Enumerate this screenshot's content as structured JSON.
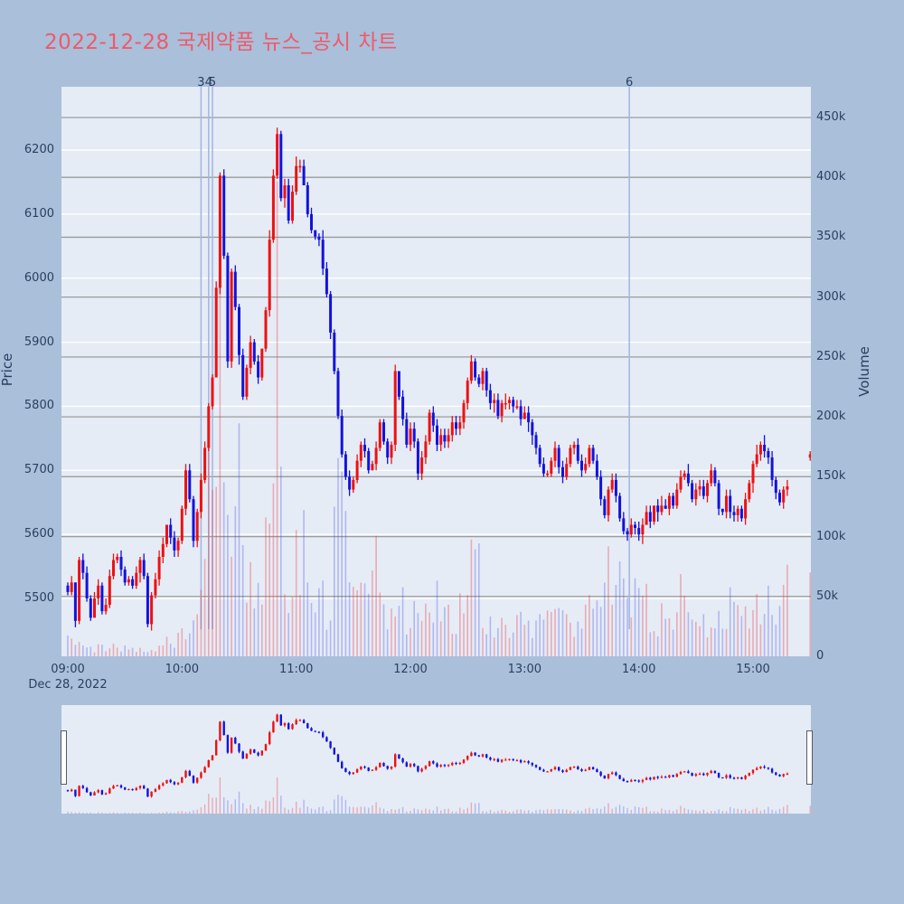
{
  "title": {
    "text": "2022-12-28 국제약품 뉴스_공시 차트",
    "color": "#ee5a6a"
  },
  "chart_data": {
    "type": "candlestick+volume",
    "symbol": "국제약품",
    "session_date": "2022-12-28",
    "x_axis": {
      "tick_labels": [
        {
          "label": "09:00",
          "minute": 0
        },
        {
          "label": "10:00",
          "minute": 60
        },
        {
          "label": "11:00",
          "minute": 120
        },
        {
          "label": "12:00",
          "minute": 180
        },
        {
          "label": "13:00",
          "minute": 240
        },
        {
          "label": "14:00",
          "minute": 300
        },
        {
          "label": "15:00",
          "minute": 360
        }
      ],
      "date_label": "Dec 28, 2022",
      "start_minute": 0,
      "end_minute": 390
    },
    "price_axis": {
      "title": "Price",
      "ticks": [
        {
          "label": "6200",
          "value": 6200
        },
        {
          "label": "6100",
          "value": 6100
        },
        {
          "label": "6000",
          "value": 6000
        },
        {
          "label": "5900",
          "value": 5900
        },
        {
          "label": "5800",
          "value": 5800
        },
        {
          "label": "5700",
          "value": 5700
        },
        {
          "label": "5600",
          "value": 5600
        },
        {
          "label": "5500",
          "value": 5500
        }
      ],
      "range": [
        5411,
        6299
      ],
      "gridline_color": "#ffffff"
    },
    "volume_axis": {
      "title": "Volume",
      "ticks": [
        {
          "label": "450k",
          "value": 450000
        },
        {
          "label": "400k",
          "value": 400000
        },
        {
          "label": "350k",
          "value": 350000
        },
        {
          "label": "300k",
          "value": 300000
        },
        {
          "label": "250k",
          "value": 250000
        },
        {
          "label": "200k",
          "value": 200000
        },
        {
          "label": "150k",
          "value": 150000
        },
        {
          "label": "100k",
          "value": 100000
        },
        {
          "label": "50k",
          "value": 50000
        },
        {
          "label": "0",
          "value": 0
        }
      ],
      "range": [
        0,
        476000
      ],
      "gridline_color": "#9b9b9b"
    },
    "annotations": [
      {
        "label": "3",
        "minute": 70
      },
      {
        "label": "4",
        "minute": 74
      },
      {
        "label": "5",
        "minute": 76
      },
      {
        "label": "6",
        "minute": 295
      }
    ],
    "candle_interval_minutes": 2,
    "price_waypoints": [
      [
        0,
        5515
      ],
      [
        2,
        5525
      ],
      [
        4,
        5465
      ],
      [
        6,
        5555
      ],
      [
        8,
        5545
      ],
      [
        10,
        5500
      ],
      [
        12,
        5475
      ],
      [
        14,
        5495
      ],
      [
        16,
        5525
      ],
      [
        18,
        5480
      ],
      [
        20,
        5495
      ],
      [
        22,
        5530
      ],
      [
        24,
        5555
      ],
      [
        26,
        5565
      ],
      [
        28,
        5545
      ],
      [
        30,
        5520
      ],
      [
        32,
        5535
      ],
      [
        34,
        5515
      ],
      [
        36,
        5545
      ],
      [
        38,
        5560
      ],
      [
        40,
        5530
      ],
      [
        42,
        5465
      ],
      [
        44,
        5500
      ],
      [
        46,
        5530
      ],
      [
        48,
        5560
      ],
      [
        50,
        5590
      ],
      [
        52,
        5620
      ],
      [
        54,
        5600
      ],
      [
        56,
        5575
      ],
      [
        58,
        5590
      ],
      [
        60,
        5640
      ],
      [
        62,
        5700
      ],
      [
        64,
        5655
      ],
      [
        66,
        5590
      ],
      [
        68,
        5640
      ],
      [
        70,
        5690
      ],
      [
        72,
        5740
      ],
      [
        74,
        5800
      ],
      [
        76,
        5845
      ],
      [
        78,
        5990
      ],
      [
        80,
        6160
      ],
      [
        82,
        6040
      ],
      [
        84,
        5870
      ],
      [
        86,
        6010
      ],
      [
        88,
        5950
      ],
      [
        90,
        5880
      ],
      [
        92,
        5810
      ],
      [
        94,
        5860
      ],
      [
        96,
        5905
      ],
      [
        98,
        5870
      ],
      [
        100,
        5840
      ],
      [
        102,
        5885
      ],
      [
        104,
        5950
      ],
      [
        106,
        6060
      ],
      [
        108,
        6160
      ],
      [
        110,
        6230
      ],
      [
        112,
        6130
      ],
      [
        114,
        6150
      ],
      [
        116,
        6090
      ],
      [
        118,
        6130
      ],
      [
        121,
        6200
      ],
      [
        124,
        6150
      ],
      [
        126,
        6100
      ],
      [
        128,
        6080
      ],
      [
        132,
        6060
      ],
      [
        134,
        6020
      ],
      [
        136,
        5980
      ],
      [
        138,
        5920
      ],
      [
        140,
        5860
      ],
      [
        142,
        5790
      ],
      [
        144,
        5730
      ],
      [
        146,
        5690
      ],
      [
        148,
        5665
      ],
      [
        150,
        5685
      ],
      [
        152,
        5720
      ],
      [
        154,
        5745
      ],
      [
        156,
        5730
      ],
      [
        158,
        5705
      ],
      [
        160,
        5715
      ],
      [
        162,
        5740
      ],
      [
        164,
        5770
      ],
      [
        166,
        5745
      ],
      [
        168,
        5720
      ],
      [
        170,
        5740
      ],
      [
        172,
        5855
      ],
      [
        174,
        5820
      ],
      [
        176,
        5780
      ],
      [
        178,
        5745
      ],
      [
        180,
        5770
      ],
      [
        182,
        5745
      ],
      [
        184,
        5700
      ],
      [
        186,
        5720
      ],
      [
        188,
        5750
      ],
      [
        190,
        5790
      ],
      [
        192,
        5770
      ],
      [
        194,
        5745
      ],
      [
        196,
        5760
      ],
      [
        198,
        5740
      ],
      [
        200,
        5755
      ],
      [
        202,
        5775
      ],
      [
        204,
        5760
      ],
      [
        206,
        5780
      ],
      [
        208,
        5810
      ],
      [
        210,
        5835
      ],
      [
        212,
        5870
      ],
      [
        214,
        5850
      ],
      [
        216,
        5835
      ],
      [
        218,
        5850
      ],
      [
        220,
        5820
      ],
      [
        222,
        5800
      ],
      [
        224,
        5815
      ],
      [
        226,
        5790
      ],
      [
        228,
        5805
      ],
      [
        230,
        5805
      ],
      [
        232,
        5810
      ],
      [
        234,
        5795
      ],
      [
        236,
        5800
      ],
      [
        238,
        5785
      ],
      [
        240,
        5790
      ],
      [
        242,
        5775
      ],
      [
        244,
        5750
      ],
      [
        246,
        5730
      ],
      [
        248,
        5710
      ],
      [
        250,
        5695
      ],
      [
        252,
        5700
      ],
      [
        254,
        5715
      ],
      [
        256,
        5730
      ],
      [
        258,
        5710
      ],
      [
        260,
        5695
      ],
      [
        262,
        5710
      ],
      [
        264,
        5730
      ],
      [
        266,
        5740
      ],
      [
        268,
        5715
      ],
      [
        270,
        5700
      ],
      [
        272,
        5715
      ],
      [
        274,
        5730
      ],
      [
        276,
        5710
      ],
      [
        278,
        5685
      ],
      [
        280,
        5655
      ],
      [
        282,
        5635
      ],
      [
        284,
        5665
      ],
      [
        286,
        5690
      ],
      [
        288,
        5660
      ],
      [
        290,
        5625
      ],
      [
        292,
        5605
      ],
      [
        294,
        5598
      ],
      [
        296,
        5610
      ],
      [
        298,
        5605
      ],
      [
        300,
        5600
      ],
      [
        302,
        5620
      ],
      [
        304,
        5635
      ],
      [
        306,
        5625
      ],
      [
        308,
        5645
      ],
      [
        310,
        5630
      ],
      [
        312,
        5650
      ],
      [
        314,
        5640
      ],
      [
        316,
        5660
      ],
      [
        318,
        5645
      ],
      [
        320,
        5665
      ],
      [
        322,
        5690
      ],
      [
        324,
        5700
      ],
      [
        326,
        5675
      ],
      [
        328,
        5655
      ],
      [
        330,
        5665
      ],
      [
        332,
        5680
      ],
      [
        334,
        5660
      ],
      [
        336,
        5675
      ],
      [
        338,
        5695
      ],
      [
        340,
        5680
      ],
      [
        342,
        5640
      ],
      [
        344,
        5630
      ],
      [
        346,
        5655
      ],
      [
        348,
        5640
      ],
      [
        350,
        5625
      ],
      [
        352,
        5645
      ],
      [
        354,
        5625
      ],
      [
        356,
        5655
      ],
      [
        358,
        5685
      ],
      [
        360,
        5710
      ],
      [
        362,
        5730
      ],
      [
        364,
        5745
      ],
      [
        366,
        5735
      ],
      [
        368,
        5715
      ],
      [
        370,
        5690
      ],
      [
        372,
        5665
      ],
      [
        374,
        5655
      ],
      [
        376,
        5675
      ],
      [
        378,
        5670
      ]
    ],
    "volume_waypoints": [
      [
        0,
        15000
      ],
      [
        4,
        9000
      ],
      [
        8,
        7000
      ],
      [
        12,
        6000
      ],
      [
        16,
        8000
      ],
      [
        20,
        6000
      ],
      [
        24,
        9000
      ],
      [
        28,
        7000
      ],
      [
        32,
        5000
      ],
      [
        36,
        6000
      ],
      [
        40,
        8000
      ],
      [
        44,
        7000
      ],
      [
        48,
        10000
      ],
      [
        52,
        14000
      ],
      [
        56,
        10000
      ],
      [
        60,
        22000
      ],
      [
        64,
        18000
      ],
      [
        68,
        25000
      ],
      [
        70,
        40000
      ],
      [
        72,
        70000
      ],
      [
        74,
        130000
      ],
      [
        76,
        225000
      ],
      [
        78,
        190000
      ],
      [
        80,
        210000
      ],
      [
        82,
        150000
      ],
      [
        84,
        120000
      ],
      [
        86,
        90000
      ],
      [
        88,
        100000
      ],
      [
        90,
        130000
      ],
      [
        92,
        110000
      ],
      [
        94,
        80000
      ],
      [
        96,
        70000
      ],
      [
        98,
        85000
      ],
      [
        100,
        60000
      ],
      [
        102,
        55000
      ],
      [
        104,
        80000
      ],
      [
        106,
        120000
      ],
      [
        108,
        200000
      ],
      [
        110,
        276000
      ],
      [
        112,
        150000
      ],
      [
        114,
        90000
      ],
      [
        116,
        65000
      ],
      [
        118,
        55000
      ],
      [
        120,
        75000
      ],
      [
        122,
        65000
      ],
      [
        124,
        80000
      ],
      [
        126,
        95000
      ],
      [
        128,
        70000
      ],
      [
        130,
        55000
      ],
      [
        132,
        45000
      ],
      [
        134,
        50000
      ],
      [
        136,
        45000
      ],
      [
        138,
        60000
      ],
      [
        140,
        90000
      ],
      [
        142,
        130000
      ],
      [
        144,
        185000
      ],
      [
        146,
        110000
      ],
      [
        148,
        70000
      ],
      [
        150,
        50000
      ],
      [
        154,
        45000
      ],
      [
        158,
        55000
      ],
      [
        162,
        65000
      ],
      [
        166,
        45000
      ],
      [
        170,
        40000
      ],
      [
        174,
        55000
      ],
      [
        178,
        40000
      ],
      [
        182,
        35000
      ],
      [
        186,
        30000
      ],
      [
        190,
        35000
      ],
      [
        194,
        45000
      ],
      [
        198,
        30000
      ],
      [
        202,
        28000
      ],
      [
        206,
        35000
      ],
      [
        210,
        50000
      ],
      [
        214,
        80000
      ],
      [
        218,
        45000
      ],
      [
        222,
        35000
      ],
      [
        226,
        30000
      ],
      [
        230,
        28000
      ],
      [
        234,
        32000
      ],
      [
        238,
        28000
      ],
      [
        242,
        30000
      ],
      [
        246,
        35000
      ],
      [
        250,
        28000
      ],
      [
        254,
        25000
      ],
      [
        258,
        28000
      ],
      [
        262,
        25000
      ],
      [
        266,
        30000
      ],
      [
        270,
        28000
      ],
      [
        274,
        35000
      ],
      [
        278,
        60000
      ],
      [
        282,
        75000
      ],
      [
        286,
        50000
      ],
      [
        290,
        60000
      ],
      [
        294,
        70000
      ],
      [
        298,
        55000
      ],
      [
        302,
        45000
      ],
      [
        306,
        38000
      ],
      [
        310,
        32000
      ],
      [
        314,
        30000
      ],
      [
        318,
        35000
      ],
      [
        322,
        45000
      ],
      [
        326,
        35000
      ],
      [
        330,
        30000
      ],
      [
        334,
        28000
      ],
      [
        338,
        32000
      ],
      [
        342,
        38000
      ],
      [
        346,
        35000
      ],
      [
        350,
        42000
      ],
      [
        354,
        48000
      ],
      [
        358,
        42000
      ],
      [
        362,
        50000
      ],
      [
        366,
        55000
      ],
      [
        370,
        45000
      ],
      [
        374,
        38000
      ],
      [
        378,
        65000
      ]
    ],
    "closing_auction": {
      "minute": 390,
      "price": 5720,
      "volume": 70000
    },
    "colors": {
      "up": "#ee1111",
      "down": "#1212dd",
      "volume_up": "rgba(240,45,55,0.34)",
      "volume_down": "rgba(55,60,225,0.30)",
      "annotation_line": "#a2b4e2",
      "tick_text": "#2a3f5f"
    },
    "rangeslider": {
      "price_range": [
        5350,
        6280
      ]
    }
  }
}
